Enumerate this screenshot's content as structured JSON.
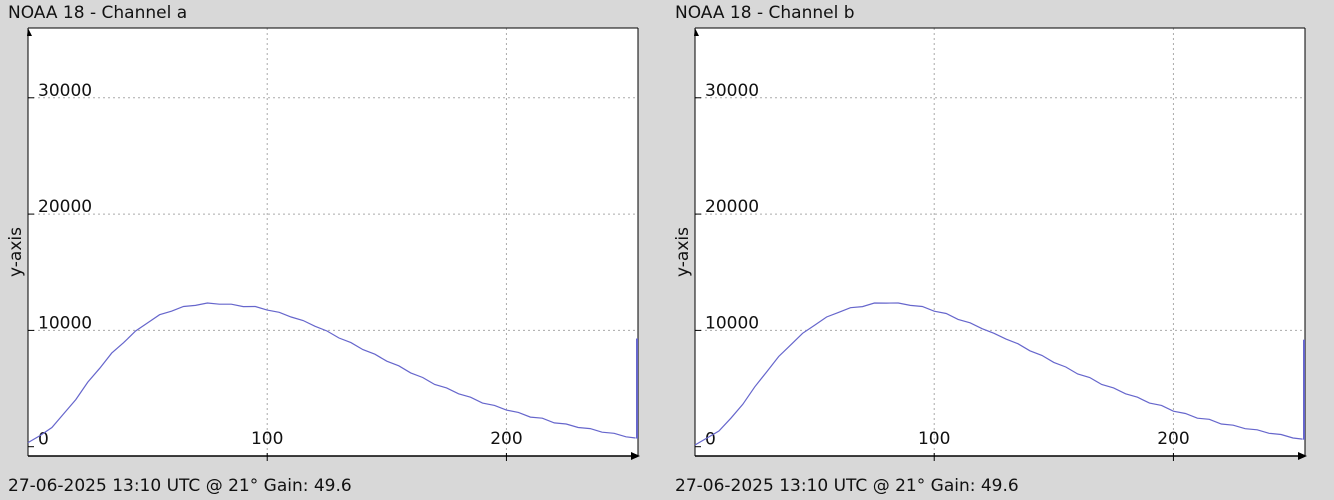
{
  "chart_data": [
    {
      "type": "line",
      "title": "NOAA 18 - Channel a",
      "footer": "27-06-2025 13:10 UTC @ 21° Gain: 49.6",
      "xlabel": "",
      "ylabel": "y-axis",
      "xlim": [
        0,
        255
      ],
      "ylim": [
        -800,
        36000
      ],
      "xticks": [
        100,
        200
      ],
      "yticks": [
        0,
        10000,
        20000,
        30000
      ],
      "grid": true,
      "series": [
        {
          "color": "#6666cc",
          "x": [
            0,
            5,
            10,
            15,
            20,
            25,
            30,
            35,
            40,
            45,
            50,
            55,
            60,
            65,
            70,
            75,
            80,
            85,
            90,
            95,
            100,
            105,
            110,
            115,
            120,
            125,
            130,
            135,
            140,
            145,
            150,
            155,
            160,
            165,
            170,
            175,
            180,
            185,
            190,
            195,
            200,
            205,
            210,
            215,
            220,
            225,
            230,
            235,
            240,
            245,
            250,
            254
          ],
          "y": [
            400,
            900,
            1700,
            2800,
            4100,
            5500,
            6800,
            8000,
            9000,
            9900,
            10700,
            11300,
            11700,
            12000,
            12200,
            12300,
            12300,
            12200,
            12100,
            12000,
            11800,
            11500,
            11200,
            10800,
            10400,
            9900,
            9400,
            8900,
            8400,
            7900,
            7400,
            6900,
            6400,
            5900,
            5400,
            5000,
            4600,
            4200,
            3800,
            3500,
            3200,
            2900,
            2600,
            2400,
            2100,
            1900,
            1700,
            1500,
            1300,
            1100,
            900,
            700
          ]
        }
      ],
      "end_spike": 9300
    },
    {
      "type": "line",
      "title": "NOAA 18 - Channel b",
      "footer": "27-06-2025 13:10 UTC @ 21° Gain: 49.6",
      "xlabel": "",
      "ylabel": "y-axis",
      "xlim": [
        0,
        255
      ],
      "ylim": [
        -800,
        36000
      ],
      "xticks": [
        100,
        200
      ],
      "yticks": [
        0,
        10000,
        20000,
        30000
      ],
      "grid": true,
      "series": [
        {
          "color": "#6666cc",
          "x": [
            0,
            5,
            10,
            15,
            20,
            25,
            30,
            35,
            40,
            45,
            50,
            55,
            60,
            65,
            70,
            75,
            80,
            85,
            90,
            95,
            100,
            105,
            110,
            115,
            120,
            125,
            130,
            135,
            140,
            145,
            150,
            155,
            160,
            165,
            170,
            175,
            180,
            185,
            190,
            195,
            200,
            205,
            210,
            215,
            220,
            225,
            230,
            235,
            240,
            245,
            250,
            254
          ],
          "y": [
            200,
            700,
            1400,
            2400,
            3700,
            5100,
            6500,
            7700,
            8800,
            9700,
            10500,
            11100,
            11600,
            11900,
            12100,
            12300,
            12400,
            12300,
            12200,
            12000,
            11700,
            11400,
            11000,
            10600,
            10200,
            9700,
            9300,
            8800,
            8300,
            7800,
            7300,
            6800,
            6300,
            5900,
            5400,
            5000,
            4600,
            4200,
            3800,
            3500,
            3100,
            2800,
            2500,
            2300,
            2000,
            1800,
            1600,
            1400,
            1200,
            1000,
            800,
            600
          ]
        }
      ],
      "end_spike": 9200
    }
  ]
}
